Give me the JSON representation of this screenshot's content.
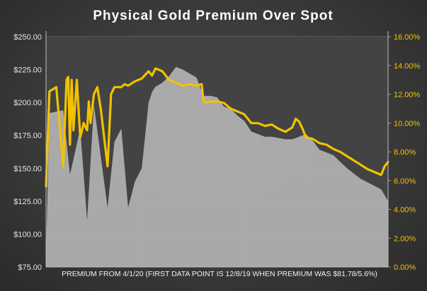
{
  "chart_data": {
    "type": "area",
    "title": "Physical  Gold  Premium  Over  Spot",
    "xlabel": "PREMIUM  FROM 4/1/20  (FIRST DATA POINT IS 12/8/19 WHEN PREMIUM WAS $81.78/5.6%)",
    "ylabel": "",
    "ylabel_right": "",
    "ylim": [
      75,
      250
    ],
    "ylim_right": [
      0,
      16
    ],
    "yticks": [
      "$250.00",
      "$225.00",
      "$200.00",
      "$175.00",
      "$150.00",
      "$125.00",
      "$100.00",
      "$75.00"
    ],
    "yticks_right": [
      "16.00%",
      "14.00%",
      "12.00%",
      "10.00%",
      "8.00%",
      "6.00%",
      "4.00%",
      "2.00%",
      "0.00%"
    ],
    "grid": true,
    "legend": "none",
    "series": [
      {
        "axis": "left",
        "type": "area",
        "color": "#b4b4b4",
        "x_index": [
          0,
          1,
          5,
          7,
          10,
          12,
          14,
          18,
          20,
          22,
          24,
          26,
          28,
          30,
          31,
          32,
          34,
          36,
          38,
          40,
          44,
          46,
          48,
          50,
          52,
          54,
          56,
          58,
          60,
          62,
          64,
          66,
          68,
          70,
          72,
          74,
          76,
          78,
          80,
          82,
          84,
          86,
          88,
          90,
          92,
          95,
          98,
          100
        ],
        "values": [
          82,
          192,
          194,
          145,
          180,
          110,
          198,
          120,
          170,
          180,
          120,
          140,
          150,
          200,
          208,
          212,
          215,
          220,
          227,
          225,
          219,
          205,
          205,
          204,
          197,
          195,
          190,
          186,
          178,
          176,
          174,
          174,
          173,
          172,
          172,
          174,
          176,
          171,
          164,
          162,
          160,
          155,
          150,
          146,
          142,
          138,
          134,
          125
        ]
      },
      {
        "axis": "right",
        "type": "line",
        "color": "#f2c200",
        "x_index": [
          0,
          1,
          3,
          5,
          6,
          6.5,
          7,
          7.5,
          8,
          9,
          10,
          11,
          12,
          12.5,
          13,
          14,
          15,
          16,
          18,
          19,
          20,
          21,
          22,
          23,
          24,
          26,
          28,
          30,
          31,
          32,
          34,
          36,
          38,
          40,
          42,
          44,
          45.5,
          46,
          46.5,
          48,
          50,
          52,
          53,
          54,
          56,
          58,
          60,
          62,
          64,
          66,
          68,
          70,
          72,
          73,
          74,
          75,
          76,
          78,
          80,
          82,
          84,
          86,
          88,
          90,
          92,
          94,
          96,
          98,
          99,
          100
        ],
        "values": [
          5.6,
          12.2,
          12.5,
          7.0,
          13.0,
          13.2,
          8.5,
          13.0,
          9.5,
          13.0,
          9.0,
          10.0,
          9.5,
          11.5,
          10.0,
          12.0,
          12.5,
          11.0,
          7.0,
          12.0,
          12.5,
          12.5,
          12.5,
          12.7,
          12.6,
          12.9,
          13.1,
          13.6,
          13.3,
          13.8,
          13.6,
          13.0,
          12.8,
          12.6,
          12.7,
          12.6,
          12.7,
          11.6,
          11.4,
          11.5,
          11.5,
          11.4,
          11.2,
          11.0,
          10.8,
          10.6,
          10.0,
          10.0,
          9.8,
          9.9,
          9.6,
          9.4,
          9.7,
          10.3,
          10.1,
          9.6,
          9.0,
          8.9,
          8.6,
          8.5,
          8.2,
          8.0,
          7.7,
          7.4,
          7.1,
          6.8,
          6.6,
          6.4,
          7.0,
          7.3
        ]
      }
    ]
  }
}
